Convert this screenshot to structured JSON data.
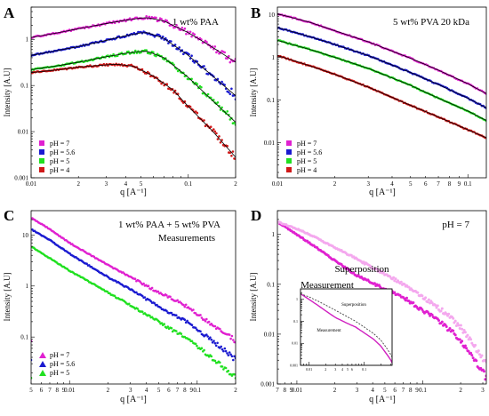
{
  "chart_data": [
    {
      "panel_letter": "A",
      "type": "scatter",
      "title": "1 wt% PAA",
      "xlabel": "q [A⁻¹]",
      "ylabel": "Intensity [A.U]",
      "xscale": "log",
      "yscale": "log",
      "xlim": [
        0.01,
        0.2
      ],
      "ylim": [
        0.001,
        5
      ],
      "x_ticklabels": [
        "0.01",
        "2",
        "3",
        "4",
        "5",
        "0.1",
        "2"
      ],
      "y_ticklabels": [
        "0.001",
        "0.01",
        "0.1",
        "1"
      ],
      "legend": {
        "placement": "bottom-left"
      },
      "fit_lines": true,
      "series": [
        {
          "name": "pH = 7",
          "color": "#e020d0",
          "points": [
            [
              0.01,
              1.1
            ],
            [
              0.015,
              1.4
            ],
            [
              0.02,
              1.7
            ],
            [
              0.03,
              2.2
            ],
            [
              0.04,
              2.6
            ],
            [
              0.05,
              2.9
            ],
            [
              0.055,
              2.95
            ],
            [
              0.07,
              2.5
            ],
            [
              0.1,
              1.4
            ],
            [
              0.14,
              0.7
            ],
            [
              0.2,
              0.32
            ]
          ]
        },
        {
          "name": "pH = 5.6",
          "color": "#1a1ad0",
          "points": [
            [
              0.01,
              0.45
            ],
            [
              0.015,
              0.58
            ],
            [
              0.02,
              0.7
            ],
            [
              0.03,
              0.95
            ],
            [
              0.04,
              1.2
            ],
            [
              0.05,
              1.38
            ],
            [
              0.055,
              1.4
            ],
            [
              0.07,
              1.05
            ],
            [
              0.1,
              0.45
            ],
            [
              0.14,
              0.17
            ],
            [
              0.2,
              0.06
            ]
          ]
        },
        {
          "name": "pH = 5",
          "color": "#20e020",
          "points": [
            [
              0.01,
              0.22
            ],
            [
              0.015,
              0.27
            ],
            [
              0.02,
              0.32
            ],
            [
              0.03,
              0.42
            ],
            [
              0.04,
              0.5
            ],
            [
              0.05,
              0.55
            ],
            [
              0.055,
              0.55
            ],
            [
              0.07,
              0.4
            ],
            [
              0.1,
              0.15
            ],
            [
              0.14,
              0.05
            ],
            [
              0.2,
              0.016
            ]
          ]
        },
        {
          "name": "pH = 4",
          "color": "#d01818",
          "points": [
            [
              0.01,
              0.19
            ],
            [
              0.015,
              0.22
            ],
            [
              0.02,
              0.25
            ],
            [
              0.03,
              0.28
            ],
            [
              0.035,
              0.29
            ],
            [
              0.045,
              0.26
            ],
            [
              0.06,
              0.16
            ],
            [
              0.08,
              0.08
            ],
            [
              0.1,
              0.035
            ],
            [
              0.14,
              0.011
            ],
            [
              0.2,
              0.0028
            ]
          ]
        }
      ]
    },
    {
      "panel_letter": "B",
      "type": "scatter",
      "title": "5 wt% PVA 20 kDa",
      "xlabel": "q [A⁻¹]",
      "ylabel": "Intensity [A.U]",
      "xscale": "log",
      "yscale": "log",
      "xlim": [
        0.01,
        0.125
      ],
      "ylim": [
        0.0015,
        15
      ],
      "x_ticklabels": [
        "0.01",
        "2",
        "3",
        "4",
        "5",
        "6",
        "7",
        "8",
        "9",
        "0.1"
      ],
      "y_ticklabels": [
        "0.01",
        "0.1",
        "1",
        "10"
      ],
      "legend": {
        "placement": "bottom-left"
      },
      "fit_lines": true,
      "series": [
        {
          "name": "pH = 7",
          "color": "#e020d0",
          "points": [
            [
              0.01,
              10.5
            ],
            [
              0.015,
              6.5
            ],
            [
              0.02,
              4.2
            ],
            [
              0.03,
              2.3
            ],
            [
              0.05,
              0.95
            ],
            [
              0.07,
              0.5
            ],
            [
              0.1,
              0.24
            ],
            [
              0.125,
              0.14
            ]
          ]
        },
        {
          "name": "pH = 5.6",
          "color": "#1a1ad0",
          "points": [
            [
              0.01,
              5.0
            ],
            [
              0.015,
              3.0
            ],
            [
              0.02,
              2.0
            ],
            [
              0.03,
              1.1
            ],
            [
              0.05,
              0.44
            ],
            [
              0.07,
              0.23
            ],
            [
              0.1,
              0.11
            ],
            [
              0.125,
              0.065
            ]
          ]
        },
        {
          "name": "pH = 5",
          "color": "#20e020",
          "points": [
            [
              0.01,
              2.5
            ],
            [
              0.015,
              1.5
            ],
            [
              0.02,
              1.0
            ],
            [
              0.03,
              0.55
            ],
            [
              0.05,
              0.22
            ],
            [
              0.07,
              0.11
            ],
            [
              0.1,
              0.055
            ],
            [
              0.125,
              0.033
            ]
          ]
        },
        {
          "name": "pH = 4",
          "color": "#d01818",
          "points": [
            [
              0.01,
              1.1
            ],
            [
              0.015,
              0.62
            ],
            [
              0.02,
              0.4
            ],
            [
              0.03,
              0.2
            ],
            [
              0.05,
              0.075
            ],
            [
              0.07,
              0.04
            ],
            [
              0.1,
              0.02
            ],
            [
              0.125,
              0.013
            ]
          ]
        }
      ]
    },
    {
      "panel_letter": "C",
      "type": "scatter",
      "title": "1 wt% PAA + 5 wt% PVA",
      "subtitle": "Measurements",
      "xlabel": "q [A⁻¹]",
      "ylabel": "Intensity [A.U]",
      "xscale": "log",
      "yscale": "log",
      "xlim": [
        0.005,
        0.2
      ],
      "ylim": [
        0.012,
        30
      ],
      "x_ticklabels": [
        "5",
        "6",
        "7",
        "8",
        "9",
        "0.01",
        "2",
        "3",
        "4",
        "5",
        "6",
        "7",
        "8",
        "9",
        "0.1",
        "2"
      ],
      "y_ticklabels": [
        "0.1",
        "1",
        "10"
      ],
      "legend": {
        "placement": "bottom-left",
        "marker": "triangle"
      },
      "fit_lines": false,
      "series": [
        {
          "name": "pH = 7",
          "color": "#e020d0",
          "points": [
            [
              0.005,
              22
            ],
            [
              0.007,
              13
            ],
            [
              0.01,
              7
            ],
            [
              0.02,
              2.6
            ],
            [
              0.03,
              1.5
            ],
            [
              0.05,
              0.75
            ],
            [
              0.06,
              0.6
            ],
            [
              0.08,
              0.42
            ],
            [
              0.1,
              0.28
            ],
            [
              0.15,
              0.14
            ],
            [
              0.2,
              0.085
            ]
          ]
        },
        {
          "name": "pH = 5.6",
          "color": "#1a1ad0",
          "points": [
            [
              0.005,
              13
            ],
            [
              0.007,
              8
            ],
            [
              0.01,
              4.3
            ],
            [
              0.02,
              1.5
            ],
            [
              0.03,
              0.85
            ],
            [
              0.05,
              0.4
            ],
            [
              0.06,
              0.31
            ],
            [
              0.08,
              0.21
            ],
            [
              0.1,
              0.14
            ],
            [
              0.15,
              0.065
            ],
            [
              0.2,
              0.036
            ]
          ]
        },
        {
          "name": "pH = 5",
          "color": "#20e020",
          "points": [
            [
              0.005,
              6
            ],
            [
              0.007,
              3.5
            ],
            [
              0.01,
              2.0
            ],
            [
              0.02,
              0.75
            ],
            [
              0.03,
              0.42
            ],
            [
              0.05,
              0.2
            ],
            [
              0.06,
              0.15
            ],
            [
              0.08,
              0.1
            ],
            [
              0.1,
              0.065
            ],
            [
              0.15,
              0.03
            ],
            [
              0.2,
              0.016
            ]
          ]
        }
      ]
    },
    {
      "panel_letter": "D",
      "type": "scatter",
      "title": "pH = 7",
      "xlabel": "q [A⁻¹]",
      "ylabel": "Intensity [A.U]",
      "xscale": "log",
      "yscale": "log",
      "xlim": [
        0.007,
        0.32
      ],
      "ylim": [
        0.001,
        3
      ],
      "x_ticklabels": [
        "7",
        "8",
        "9",
        "0.01",
        "2",
        "3",
        "4",
        "5",
        "6",
        "7",
        "8",
        "9",
        "0.1",
        "2",
        "3"
      ],
      "y_ticklabels": [
        "0.001",
        "0.01",
        "0.1",
        "1"
      ],
      "annotations": [
        "Superposition",
        "Measurement"
      ],
      "series": [
        {
          "name": "Measurement",
          "color": "#e020d0",
          "points": [
            [
              0.007,
              1.8
            ],
            [
              0.01,
              1.0
            ],
            [
              0.015,
              0.5
            ],
            [
              0.02,
              0.3
            ],
            [
              0.03,
              0.15
            ],
            [
              0.05,
              0.08
            ],
            [
              0.07,
              0.055
            ],
            [
              0.1,
              0.03
            ],
            [
              0.15,
              0.015
            ],
            [
              0.2,
              0.0075
            ],
            [
              0.25,
              0.0035
            ],
            [
              0.3,
              0.0018
            ],
            [
              0.32,
              0.0013
            ]
          ]
        },
        {
          "name": "Superposition",
          "color": "#f4a8ee",
          "points": [
            [
              0.007,
              1.8
            ],
            [
              0.01,
              1.3
            ],
            [
              0.015,
              0.8
            ],
            [
              0.02,
              0.55
            ],
            [
              0.03,
              0.32
            ],
            [
              0.05,
              0.16
            ],
            [
              0.07,
              0.1
            ],
            [
              0.1,
              0.055
            ],
            [
              0.15,
              0.027
            ],
            [
              0.2,
              0.014
            ],
            [
              0.25,
              0.0065
            ],
            [
              0.3,
              0.0032
            ],
            [
              0.32,
              0.0024
            ]
          ]
        }
      ],
      "inset": {
        "xscale": "log",
        "yscale": "log",
        "xlim": [
          0.007,
          0.32
        ],
        "ylim": [
          0.001,
          3
        ],
        "x_ticklabels": [
          "0.01",
          "2",
          "3",
          "4",
          "5",
          "6",
          "0.1"
        ],
        "y_ticklabels": [
          "0.001",
          "0.01",
          "0.1",
          "1"
        ],
        "labels": [
          "Superposition",
          "Measurement"
        ]
      }
    }
  ]
}
